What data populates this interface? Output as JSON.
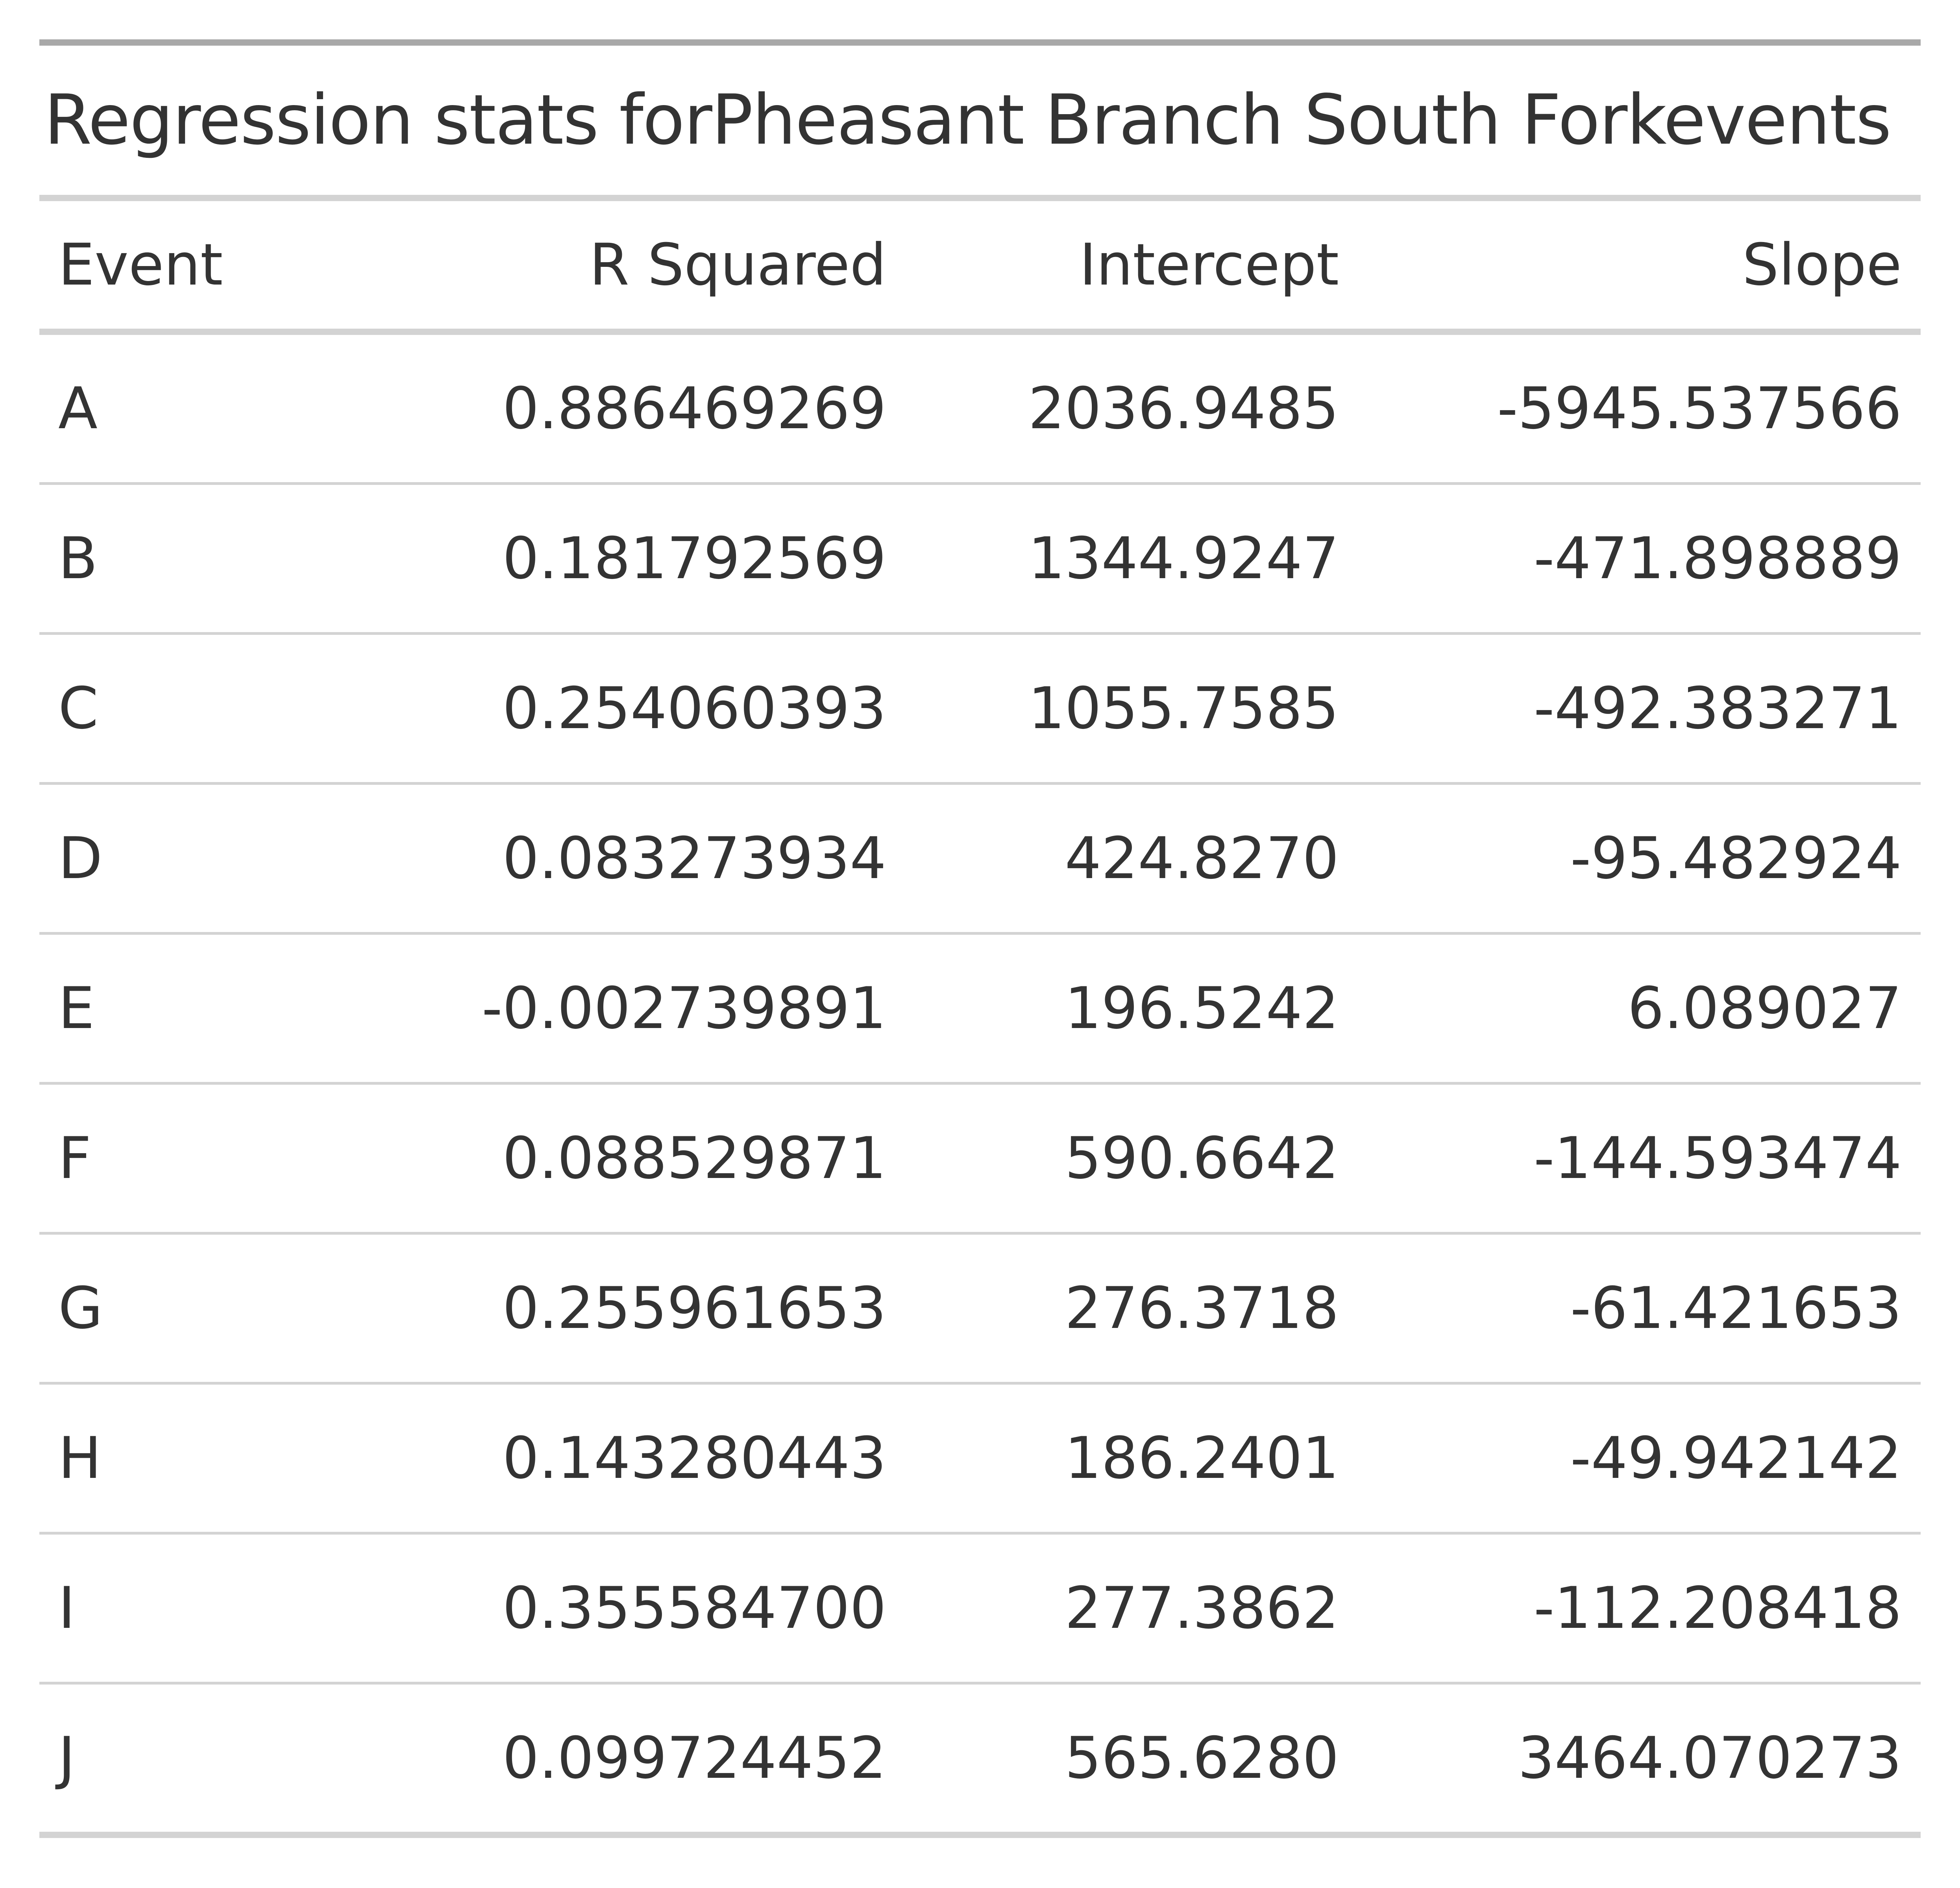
{
  "table": {
    "title": "Regression stats forPheasant Branch South Forkevents",
    "columns": [
      "Event",
      "R Squared",
      "Intercept",
      "Slope"
    ],
    "rows": [
      [
        "A",
        "0.886469269",
        "2036.9485",
        "-5945.537566"
      ],
      [
        "B",
        "0.181792569",
        "1344.9247",
        "-471.898889"
      ],
      [
        "C",
        "0.254060393",
        "1055.7585",
        "-492.383271"
      ],
      [
        "D",
        "0.083273934",
        "424.8270",
        "-95.482924"
      ],
      [
        "E",
        "-0.002739891",
        "196.5242",
        "6.089027"
      ],
      [
        "F",
        "0.088529871",
        "590.6642",
        "-144.593474"
      ],
      [
        "G",
        "0.255961653",
        "276.3718",
        "-61.421653"
      ],
      [
        "H",
        "0.143280443",
        "186.2401",
        "-49.942142"
      ],
      [
        "I",
        "0.355584700",
        "277.3862",
        "-112.208418"
      ],
      [
        "J",
        "0.099724452",
        "565.6280",
        "3464.070273"
      ]
    ]
  },
  "chart_data": {
    "type": "table",
    "title": "Regression stats forPheasant Branch South Forkevents",
    "columns": [
      "Event",
      "R Squared",
      "Intercept",
      "Slope"
    ],
    "rows": [
      {
        "Event": "A",
        "R Squared": 0.886469269,
        "Intercept": 2036.9485,
        "Slope": -5945.537566
      },
      {
        "Event": "B",
        "R Squared": 0.181792569,
        "Intercept": 1344.9247,
        "Slope": -471.898889
      },
      {
        "Event": "C",
        "R Squared": 0.254060393,
        "Intercept": 1055.7585,
        "Slope": -492.383271
      },
      {
        "Event": "D",
        "R Squared": 0.083273934,
        "Intercept": 424.827,
        "Slope": -95.482924
      },
      {
        "Event": "E",
        "R Squared": -0.002739891,
        "Intercept": 196.5242,
        "Slope": 6.089027
      },
      {
        "Event": "F",
        "R Squared": 0.088529871,
        "Intercept": 590.6642,
        "Slope": -144.593474
      },
      {
        "Event": "G",
        "R Squared": 0.255961653,
        "Intercept": 276.3718,
        "Slope": -61.421653
      },
      {
        "Event": "H",
        "R Squared": 0.143280443,
        "Intercept": 186.2401,
        "Slope": -49.942142
      },
      {
        "Event": "I",
        "R Squared": 0.3555847,
        "Intercept": 277.3862,
        "Slope": -112.208418
      },
      {
        "Event": "J",
        "R Squared": 0.099724452,
        "Intercept": 565.628,
        "Slope": 3464.070273
      }
    ]
  }
}
